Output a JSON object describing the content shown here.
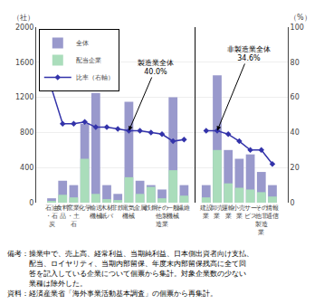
{
  "chart_data": {
    "type": "bar",
    "categories": [
      "石油\n・石\n炭",
      "食料\n品",
      "窯業\n・土\n石",
      "化学",
      "輸送\n機械",
      "木材\n紙パ",
      "非鉄",
      "電気\n機械",
      "金属",
      "鉄鋼",
      "その\n他製\n造業",
      "一般\n機械",
      "繊維",
      null,
      "建設\n業",
      "卸売\n業",
      "運輸\n業",
      "小売\n業",
      "サー\nビス",
      "その\n他非\n製造\n業",
      "情報\n通信"
    ],
    "series": [
      {
        "name": "全体",
        "color": "#9999cc",
        "values": [
          50,
          250,
          200,
          900,
          1250,
          200,
          100,
          1150,
          250,
          200,
          150,
          1200,
          200,
          null,
          200,
          1450,
          600,
          500,
          550,
          350,
          200
        ]
      },
      {
        "name": "配当企業",
        "color": "#aaddbb",
        "values": [
          20,
          90,
          60,
          500,
          100,
          40,
          30,
          290,
          100,
          180,
          50,
          370,
          80,
          null,
          60,
          600,
          220,
          170,
          150,
          120,
          70
        ]
      },
      {
        "name": "比率（右軸）",
        "type": "line",
        "axis": "y2",
        "color": "#3333aa",
        "marker": "diamond",
        "values": [
          65,
          45,
          45,
          46,
          43,
          43,
          42,
          41,
          41,
          40,
          39,
          35,
          36,
          null,
          41,
          41,
          39,
          35,
          30,
          30,
          22
        ]
      }
    ],
    "ylabel": "（社）",
    "y2label": "（%）",
    "ylim": [
      0,
      2000
    ],
    "yticks": [
      0,
      400,
      800,
      1200,
      1600,
      2000
    ],
    "y2lim": [
      0,
      100
    ],
    "y2ticks": [
      0,
      20,
      40,
      60,
      80,
      100
    ],
    "grid": true,
    "legend": "upper left",
    "stacked": false,
    "annotations": [
      {
        "text": "製造業全体\n40.0%",
        "x": 7,
        "y": 41,
        "axis": "y2"
      },
      {
        "text": "非製造業全体\n34.6%",
        "x": 15,
        "y": 41,
        "axis": "y2"
      }
    ],
    "notes": [
      "備考：操業中で、売上高、経常利益、当期純利益、日本側出資者向け支払、",
      "　　　配当、ロイヤリティ、当期内部留保、年度末内部留保残高に全て回",
      "　　　答を記入している企業について個票から集計。対象企業数の少ない",
      "　　　業種は除外した。"
    ],
    "source": "資料：経済産業省「海外事業活動基本調査」の個票から再集計。"
  }
}
